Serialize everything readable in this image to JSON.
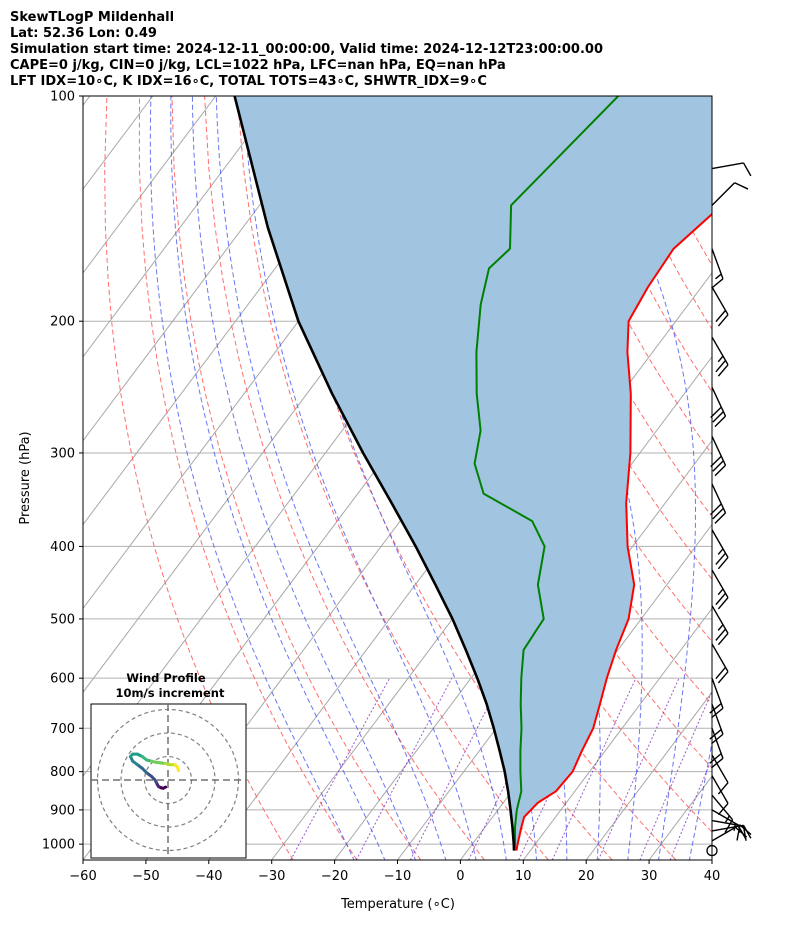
{
  "header": {
    "line1": "SkewTLogP Mildenhall",
    "line2": "Lat: 52.36   Lon: 0.49",
    "line3": "Simulation start time: 2024-12-11_00:00:00, Valid time: 2024-12-12T23:00:00.00",
    "line4": "CAPE=0 j/kg, CIN=0 j/kg, LCL=1022 hPa, LFC=nan hPa, EQ=nan hPa",
    "line5": "LFT IDX=10∘C, K IDX=16∘C, TOTAL TOTS=43∘C, SHWTR_IDX=9∘C"
  },
  "chart_data": {
    "type": "skewt",
    "xlabel": "Temperature (∘C)",
    "ylabel": "Pressure (hPa)",
    "xlim": [
      -60,
      40
    ],
    "ylim": [
      1050,
      100
    ],
    "x_ticks": [
      "−60",
      "−50",
      "−40",
      "−30",
      "−20",
      "−10",
      "0",
      "10",
      "20",
      "30",
      "40"
    ],
    "y_ticks": [
      {
        "p": 1000,
        "label": "1000"
      },
      {
        "p": 900,
        "label": "900"
      },
      {
        "p": 800,
        "label": "800"
      },
      {
        "p": 700,
        "label": "700"
      },
      {
        "p": 600,
        "label": "600"
      },
      {
        "p": 500,
        "label": "500"
      },
      {
        "p": 400,
        "label": "400"
      },
      {
        "p": 300,
        "label": "300"
      },
      {
        "p": 200,
        "label": "200"
      },
      {
        "p": 100,
        "label": "100"
      }
    ],
    "series": [
      {
        "name": "temperature",
        "color": "#ff0000",
        "points": [
          [
            1020,
            7.8
          ],
          [
            1000,
            7.2
          ],
          [
            950,
            5.8
          ],
          [
            920,
            5.0
          ],
          [
            880,
            5.5
          ],
          [
            850,
            7.0
          ],
          [
            800,
            7.3
          ],
          [
            750,
            6.3
          ],
          [
            700,
            5.4
          ],
          [
            650,
            3.6
          ],
          [
            600,
            1.6
          ],
          [
            550,
            -0.3
          ],
          [
            500,
            -2.0
          ],
          [
            450,
            -5.2
          ],
          [
            400,
            -10.8
          ],
          [
            350,
            -16.2
          ],
          [
            300,
            -21.5
          ],
          [
            250,
            -28.5
          ],
          [
            220,
            -34.0
          ],
          [
            200,
            -37.5
          ],
          [
            180,
            -38.5
          ],
          [
            160,
            -39.0
          ],
          [
            140,
            -36.5
          ],
          [
            125,
            -40.0
          ],
          [
            113,
            -42.5
          ],
          [
            100,
            -50.0
          ]
        ]
      },
      {
        "name": "dewpoint",
        "color": "#008000",
        "points": [
          [
            1020,
            7.5
          ],
          [
            1000,
            6.8
          ],
          [
            950,
            4.8
          ],
          [
            900,
            3.0
          ],
          [
            850,
            1.5
          ],
          [
            800,
            -1.0
          ],
          [
            750,
            -3.5
          ],
          [
            700,
            -6.0
          ],
          [
            650,
            -9.0
          ],
          [
            600,
            -12.0
          ],
          [
            550,
            -15.0
          ],
          [
            500,
            -15.5
          ],
          [
            450,
            -20.5
          ],
          [
            400,
            -24.0
          ],
          [
            370,
            -29.0
          ],
          [
            340,
            -40.0
          ],
          [
            310,
            -45.0
          ],
          [
            280,
            -48.0
          ],
          [
            250,
            -53.0
          ],
          [
            220,
            -58.0
          ],
          [
            190,
            -63.0
          ],
          [
            170,
            -66.0
          ],
          [
            160,
            -65.0
          ],
          [
            140,
            -70.0
          ],
          [
            100,
            -66.0
          ]
        ]
      },
      {
        "name": "parcel",
        "color": "#000000",
        "points": [
          [
            1020,
            7.4
          ],
          [
            1000,
            6.6
          ],
          [
            950,
            4.4
          ],
          [
            900,
            2.0
          ],
          [
            850,
            -0.6
          ],
          [
            800,
            -3.5
          ],
          [
            750,
            -6.8
          ],
          [
            700,
            -10.4
          ],
          [
            650,
            -14.4
          ],
          [
            600,
            -19.0
          ],
          [
            550,
            -24.2
          ],
          [
            500,
            -30.0
          ],
          [
            450,
            -36.8
          ],
          [
            400,
            -44.5
          ],
          [
            350,
            -53.5
          ],
          [
            300,
            -64.0
          ],
          [
            250,
            -76.0
          ],
          [
            200,
            -90.0
          ],
          [
            150,
            -106.0
          ],
          [
            100,
            -127.0
          ]
        ]
      }
    ],
    "fill": {
      "color": "#a1c5e0",
      "between": [
        "temperature",
        "parcel"
      ]
    },
    "wind_barbs": [
      {
        "p": 1020,
        "speed_kt": 0,
        "dir": 0
      },
      {
        "p": 990,
        "speed_kt": 20,
        "dir": 60
      },
      {
        "p": 960,
        "speed_kt": 20,
        "dir": 80
      },
      {
        "p": 930,
        "speed_kt": 15,
        "dir": 100
      },
      {
        "p": 900,
        "speed_kt": 15,
        "dir": 120
      },
      {
        "p": 860,
        "speed_kt": 15,
        "dir": 140
      },
      {
        "p": 810,
        "speed_kt": 10,
        "dir": 150
      },
      {
        "p": 760,
        "speed_kt": 10,
        "dir": 150
      },
      {
        "p": 700,
        "speed_kt": 20,
        "dir": 160
      },
      {
        "p": 650,
        "speed_kt": 20,
        "dir": 160
      },
      {
        "p": 600,
        "speed_kt": 20,
        "dir": 160
      },
      {
        "p": 540,
        "speed_kt": 20,
        "dir": 150
      },
      {
        "p": 480,
        "speed_kt": 25,
        "dir": 150
      },
      {
        "p": 430,
        "speed_kt": 25,
        "dir": 150
      },
      {
        "p": 380,
        "speed_kt": 25,
        "dir": 150
      },
      {
        "p": 330,
        "speed_kt": 30,
        "dir": 155
      },
      {
        "p": 285,
        "speed_kt": 30,
        "dir": 155
      },
      {
        "p": 245,
        "speed_kt": 30,
        "dir": 155
      },
      {
        "p": 210,
        "speed_kt": 25,
        "dir": 150
      },
      {
        "p": 180,
        "speed_kt": 20,
        "dir": 150
      },
      {
        "p": 160,
        "speed_kt": 15,
        "dir": 160
      },
      {
        "p": 140,
        "speed_kt": 10,
        "dir": 45
      },
      {
        "p": 125,
        "speed_kt": 10,
        "dir": 80
      }
    ],
    "hodograph": {
      "title": "Wind Profile",
      "subtitle": "10m/s increment",
      "rings": [
        10,
        20,
        30
      ],
      "path": [
        [
          -1,
          -3
        ],
        [
          -2,
          -3.5
        ],
        [
          -3,
          -3.3
        ],
        [
          -4,
          -2.8
        ],
        [
          -4.5,
          -2
        ],
        [
          -5,
          -1
        ],
        [
          -5.5,
          0
        ],
        [
          -7,
          1.5
        ],
        [
          -9,
          3
        ],
        [
          -11,
          5
        ],
        [
          -13,
          6.5
        ],
        [
          -15,
          8
        ],
        [
          -16,
          10
        ],
        [
          -15,
          11
        ],
        [
          -13,
          11
        ],
        [
          -11,
          10
        ],
        [
          -9,
          8.5
        ],
        [
          -7,
          8
        ],
        [
          -5,
          7.5
        ],
        [
          -3,
          7.3
        ],
        [
          -1,
          7
        ],
        [
          1,
          6.5
        ],
        [
          3,
          6.5
        ],
        [
          4,
          5.5
        ],
        [
          4.5,
          4
        ]
      ]
    }
  }
}
